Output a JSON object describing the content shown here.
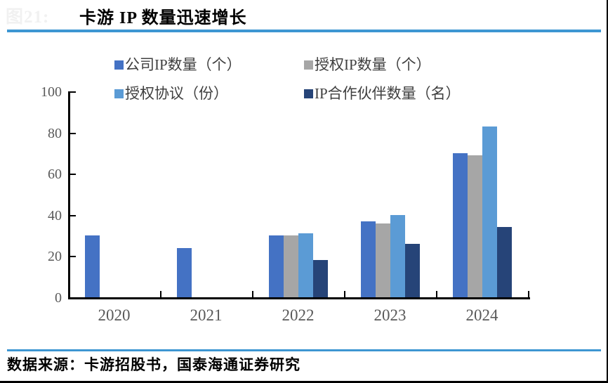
{
  "figure_label": "图21:",
  "title": "卡游 IP 数量迅速增长",
  "source": "数据来源：卡游招股书，国泰海通证券研究",
  "colors": {
    "rule_blue": "#3d96d2",
    "axis_black": "#000000",
    "tick_label_gray": "#595959",
    "legend_text_gray": "#3f3f3f"
  },
  "chart_data": {
    "type": "bar",
    "title": "卡游 IP 数量迅速增长",
    "categories": [
      "2020",
      "2021",
      "2022",
      "2023",
      "2024"
    ],
    "series": [
      {
        "name": "公司IP数量（个）",
        "color": "#4472c4",
        "values": [
          30,
          24,
          30,
          37,
          70
        ]
      },
      {
        "name": "授权IP数量（个）",
        "color": "#a6a6a6",
        "values": [
          null,
          null,
          30,
          36,
          69
        ]
      },
      {
        "name": "授权协议（份）",
        "color": "#5b9bd5",
        "values": [
          null,
          null,
          31,
          40,
          83
        ]
      },
      {
        "name": "IP合作伙伴数量（名）",
        "color": "#264478",
        "values": [
          null,
          null,
          18,
          26,
          34
        ]
      }
    ],
    "xlabel": "",
    "ylabel": "",
    "ylim": [
      0,
      100
    ],
    "yticks": [
      0,
      20,
      40,
      60,
      80,
      100
    ],
    "grid": false,
    "legend_position": "top"
  }
}
